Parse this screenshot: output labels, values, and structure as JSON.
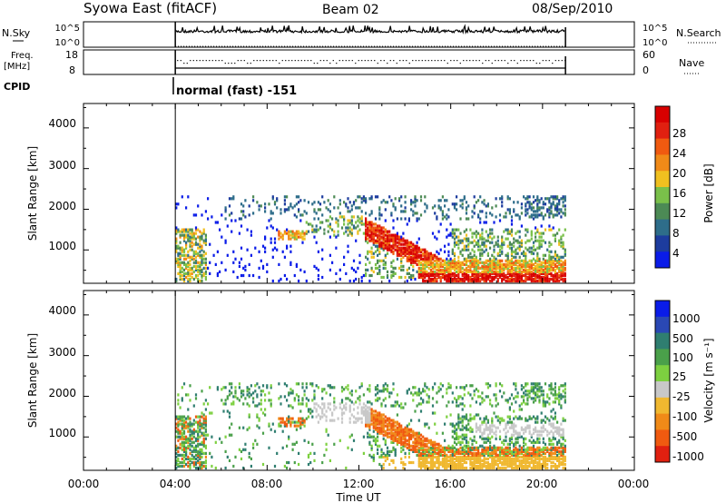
{
  "header": {
    "station": "Syowa East (fitACF)",
    "beam": "Beam 02",
    "date": "08/Sep/2010"
  },
  "aux": {
    "nsky_label": "N.Sky",
    "nsky_ticks": [
      "10^5",
      "10^0"
    ],
    "nsearch_label": "N.Search",
    "freq_label_1": "Freq.",
    "freq_label_2": "[MHz]",
    "freq_ticks": [
      "18",
      "8"
    ],
    "nave_label": "Nave",
    "nave_ticks": [
      "60",
      "0"
    ],
    "cpid_label": "CPID",
    "cpid_value": "normal (fast) -151"
  },
  "colors": {
    "power_scale": [
      "#0a1ce8",
      "#1d3c9e",
      "#2e6d8a",
      "#4c8a55",
      "#7ac04a",
      "#f0c020",
      "#f08a18",
      "#f05a10",
      "#e02010",
      "#d80000"
    ],
    "velocity_scale": [
      "#0a1ce8",
      "#2a48b4",
      "#2f7e70",
      "#4aa04a",
      "#7dd040",
      "#c8c8c8",
      "#f0b830",
      "#f08a18",
      "#f05a10",
      "#e02010"
    ]
  },
  "chart_data": [
    {
      "type": "heatmap",
      "name": "power",
      "xlabel": "",
      "ylabel": "Slant Range [km]",
      "xlim": [
        0,
        24
      ],
      "ylim": [
        180,
        4600
      ],
      "yticks": [
        "1000",
        "2000",
        "3000",
        "4000"
      ],
      "colorbar_label": "Power [dB]",
      "colorbar_ticks": [
        "4",
        "8",
        "12",
        "16",
        "20",
        "24",
        "28"
      ],
      "data_coverage_ut": [
        4.0,
        21.0
      ],
      "features": [
        {
          "ut_start": 4.0,
          "ut_end": 5.5,
          "range_km": [
            200,
            1400
          ],
          "level": "low"
        },
        {
          "ut_start": 8.5,
          "ut_end": 9.5,
          "range_km": [
            1200,
            1400
          ],
          "level": "medium"
        },
        {
          "ut_start": 12.3,
          "ut_end": 15.5,
          "range_km": [
            300,
            1400
          ],
          "level": "high"
        },
        {
          "ut_start": 15.5,
          "ut_end": 21.0,
          "range_km": [
            200,
            700
          ],
          "level": "high"
        }
      ]
    },
    {
      "type": "heatmap",
      "name": "velocity",
      "xlabel": "Time UT",
      "ylabel": "Slant Range [km]",
      "xlim": [
        0,
        24
      ],
      "ylim": [
        180,
        4600
      ],
      "yticks": [
        "1000",
        "2000",
        "3000",
        "4000"
      ],
      "xticks": [
        "00:00",
        "04:00",
        "08:00",
        "12:00",
        "16:00",
        "20:00",
        "00:00"
      ],
      "colorbar_label": "Velocity [m s⁻¹]",
      "colorbar_ticks": [
        "1000",
        "500",
        "100",
        "25",
        "-25",
        "-100",
        "-500",
        "-1000"
      ],
      "data_coverage_ut": [
        4.0,
        21.0
      ]
    }
  ]
}
